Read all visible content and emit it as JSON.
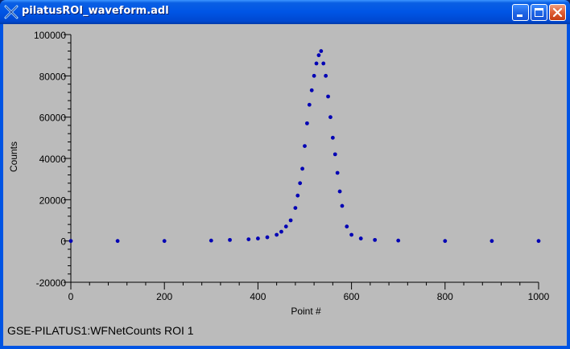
{
  "window": {
    "title": "pilatusROI_waveform.adl"
  },
  "controls": {
    "minimize_icon": "minimize-icon",
    "maximize_icon": "maximize-icon",
    "close_icon": "close-icon"
  },
  "status": {
    "label": "GSE-PILATUS1:WFNetCounts ROI 1"
  },
  "colors": {
    "plot_background": "#bbbbbb",
    "trace": "#0000b4"
  },
  "chart_data": {
    "type": "scatter",
    "title": "",
    "xlabel": "Point #",
    "ylabel": "Counts",
    "xlim": [
      0,
      1000
    ],
    "ylim": [
      -20000,
      100000
    ],
    "x_ticks": [
      "0",
      "200",
      "400",
      "600",
      "800",
      "1000"
    ],
    "y_ticks": [
      "-20000",
      "0",
      "20000",
      "40000",
      "60000",
      "80000",
      "100000"
    ],
    "grid": false,
    "series": [
      {
        "x": [
          0,
          100,
          200,
          300,
          340,
          380,
          400,
          420,
          440,
          450,
          460,
          470,
          480,
          485,
          490,
          495,
          500,
          505,
          510,
          515,
          520,
          525,
          530,
          535,
          540,
          545,
          550,
          555,
          560,
          565,
          570,
          575,
          580,
          590,
          600,
          620,
          650,
          700,
          800,
          900,
          1000
        ],
        "y": [
          0,
          0,
          0,
          200,
          500,
          800,
          1200,
          1800,
          3000,
          4500,
          7000,
          10000,
          16000,
          22000,
          28000,
          35000,
          46000,
          57000,
          66000,
          73000,
          80000,
          86000,
          90000,
          92000,
          86000,
          80000,
          70000,
          60000,
          50000,
          42000,
          33000,
          24000,
          17000,
          7000,
          3000,
          1200,
          500,
          200,
          0,
          0,
          0
        ]
      }
    ]
  }
}
